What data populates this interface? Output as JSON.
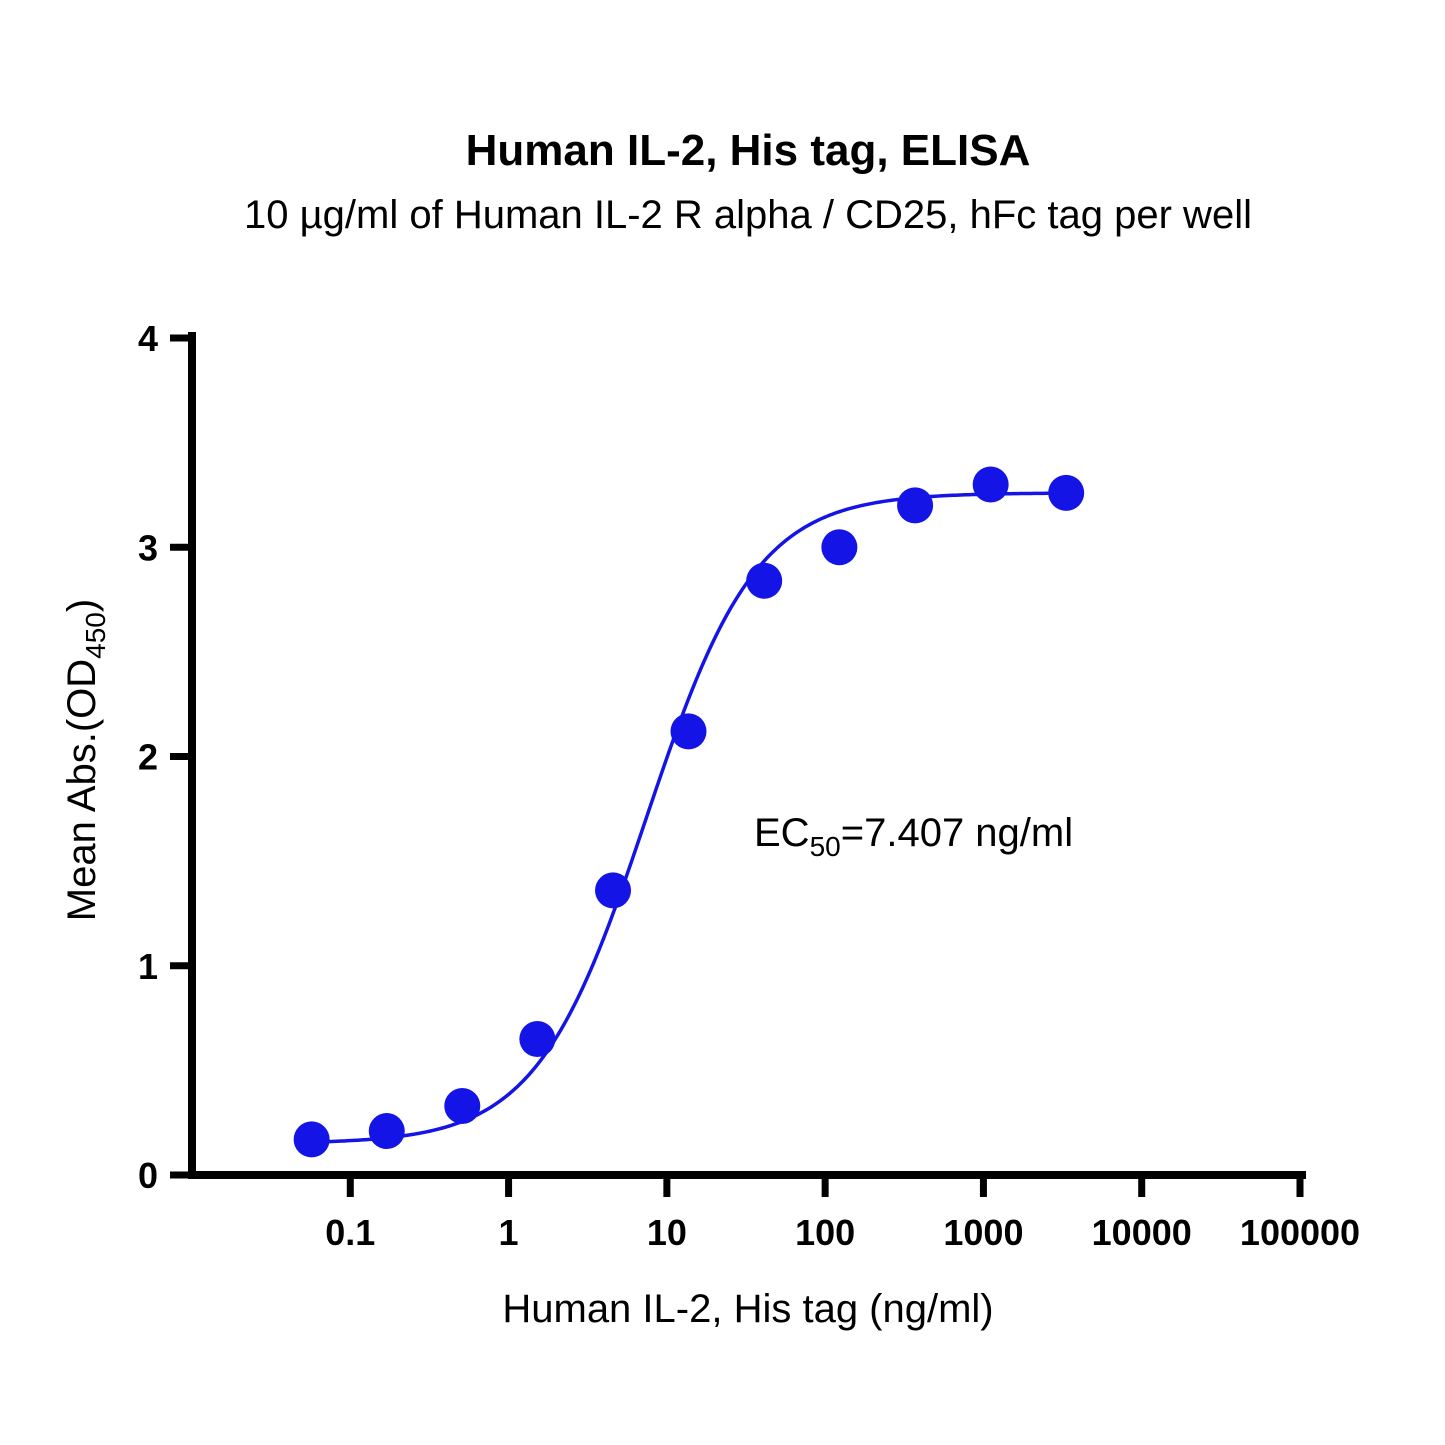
{
  "chart_data": {
    "type": "scatter",
    "title": "Human IL-2, His tag, ELISA",
    "subtitle": "10 µg/ml of Human IL-2 R alpha / CD25, hFc tag per well",
    "xlabel": "Human IL-2, His tag (ng/ml)",
    "ylabel_main": "Mean Abs.(OD",
    "ylabel_sub": "450",
    "ylabel_end": ")",
    "xscale": "log",
    "xlim": [
      0.01,
      100000
    ],
    "ylim": [
      0,
      4
    ],
    "x_ticks": [
      0.1,
      1,
      10,
      100,
      1000,
      10000,
      100000
    ],
    "x_tick_labels": [
      "0.1",
      "1",
      "10",
      "100",
      "1000",
      "10000",
      "100000"
    ],
    "y_ticks": [
      0,
      1,
      2,
      3,
      4
    ],
    "y_tick_labels": [
      "0",
      "1",
      "2",
      "3",
      "4"
    ],
    "grid": false,
    "series": [
      {
        "color": "#1414e6",
        "x": [
          0.057,
          0.17,
          0.51,
          1.52,
          4.57,
          13.7,
          41.2,
          123,
          370,
          1111,
          3333
        ],
        "y": [
          0.17,
          0.21,
          0.33,
          0.65,
          1.36,
          2.12,
          2.84,
          3.0,
          3.2,
          3.3,
          3.26
        ]
      }
    ],
    "fit": {
      "model": "4PL",
      "bottom": 0.15,
      "top": 3.26,
      "ec50": 7.407,
      "hill": 1.25,
      "x_range": [
        0.057,
        3333
      ]
    },
    "annotation": {
      "prefix": "EC",
      "sub": "50",
      "suffix": "=7.407 ng/ml"
    }
  }
}
